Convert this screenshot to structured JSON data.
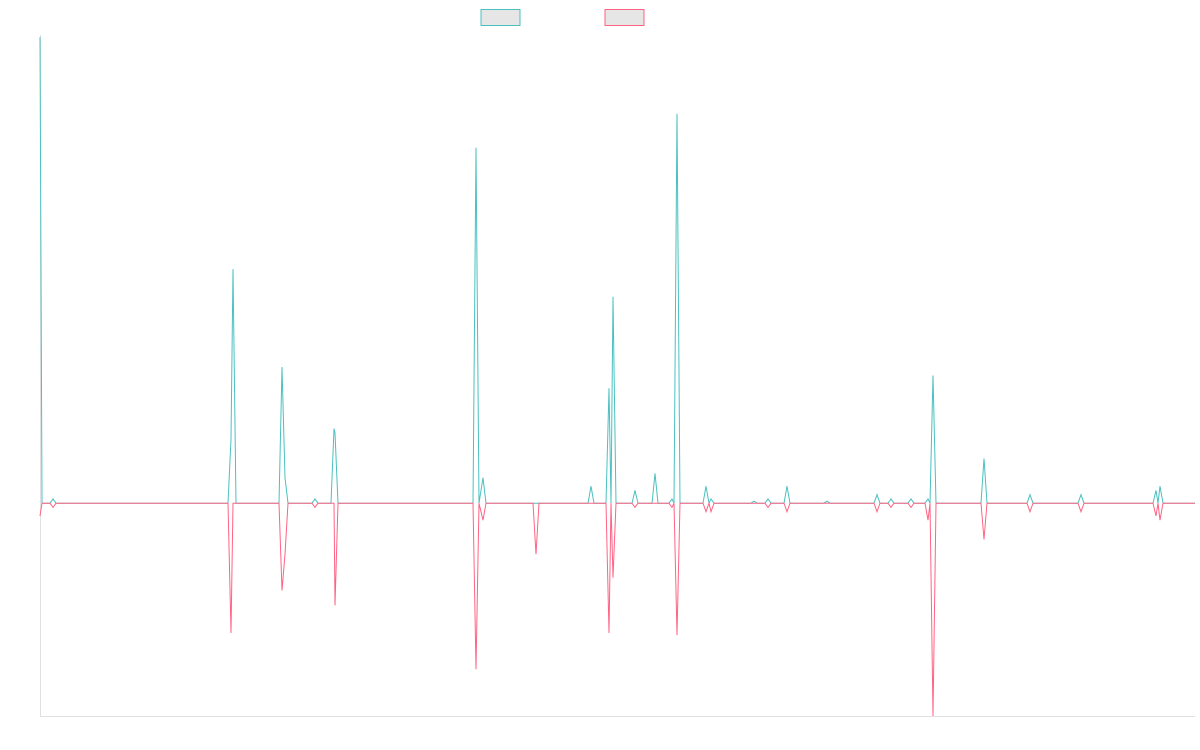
{
  "chart_data": {
    "type": "line",
    "x": [
      40,
      42,
      50,
      53,
      56,
      228,
      231,
      233,
      236,
      279,
      282,
      285,
      288,
      312,
      315,
      318,
      331,
      334,
      335,
      338,
      473,
      476,
      479,
      483,
      486,
      533,
      536,
      539,
      588,
      591,
      594,
      606,
      609,
      611,
      613,
      616,
      632,
      635,
      638,
      652,
      655,
      658,
      669,
      672,
      674,
      677,
      680,
      703,
      706,
      709,
      711,
      714,
      751,
      754,
      757,
      765,
      768,
      771,
      784,
      787,
      790,
      824,
      827,
      830,
      874,
      877,
      880,
      888,
      891,
      894,
      908,
      911,
      914,
      925,
      928,
      930,
      933,
      936,
      981,
      984,
      987,
      1027,
      1030,
      1033,
      1078,
      1081,
      1084,
      1153,
      1156,
      1158,
      1160,
      1163,
      1195
    ],
    "series": [
      {
        "color": "#4bc0c0",
        "values": [
          2.19,
          0,
          0,
          0.02,
          0,
          0,
          0.3,
          1.1,
          0,
          0,
          0.64,
          0.12,
          0,
          0,
          0.02,
          0,
          0,
          0.35,
          0.33,
          0,
          0,
          1.67,
          0,
          0.12,
          0,
          0,
          0,
          0,
          0,
          0.08,
          0,
          0,
          0.54,
          0,
          0.97,
          0,
          0,
          0.06,
          0,
          0,
          0.14,
          0,
          0,
          0.02,
          0,
          1.83,
          0,
          0,
          0.08,
          0,
          0.02,
          0,
          0,
          0.01,
          0,
          0,
          0.02,
          0,
          0,
          0.08,
          0,
          0,
          0.01,
          0,
          0,
          0.04,
          0,
          0,
          0.02,
          0,
          0,
          0.02,
          0,
          0,
          0.02,
          0,
          0.6,
          0,
          0,
          0.21,
          0,
          0,
          0.04,
          0,
          0,
          0.04,
          0,
          0,
          0.06,
          0,
          0.08,
          0,
          0
        ]
      },
      {
        "color": "#ff6384",
        "values": [
          -0.06,
          0,
          0,
          -0.02,
          0,
          0,
          -0.61,
          0,
          0,
          0,
          -0.41,
          -0.24,
          0,
          0,
          -0.02,
          0,
          0,
          0,
          -0.48,
          0,
          0,
          -0.78,
          0,
          -0.08,
          0,
          0,
          -0.24,
          0,
          0,
          0,
          0,
          0,
          -0.61,
          0,
          -0.35,
          0,
          0,
          -0.02,
          0,
          0,
          0,
          0,
          0,
          -0.02,
          0,
          -0.62,
          0,
          0,
          -0.04,
          0,
          -0.04,
          0,
          0,
          0,
          0,
          0,
          -0.02,
          0,
          0,
          -0.04,
          0,
          0,
          0,
          0,
          0,
          -0.04,
          0,
          0,
          -0.02,
          0,
          0,
          -0.02,
          0,
          0,
          -0.08,
          0,
          -1.0,
          0,
          0,
          -0.17,
          0,
          0,
          -0.04,
          0,
          0,
          -0.04,
          0,
          0,
          -0.06,
          0,
          -0.08,
          0,
          0
        ]
      }
    ],
    "xlim": [
      40,
      1195
    ],
    "ylim": [
      -1,
      2.2
    ]
  }
}
